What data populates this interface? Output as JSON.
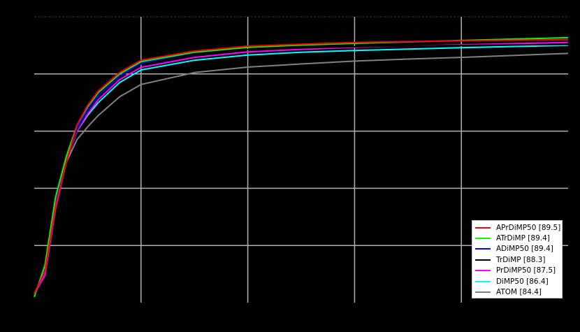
{
  "chart_data": {
    "type": "line",
    "title": "",
    "xlabel": "",
    "ylabel": "",
    "xlim": [
      0,
      50
    ],
    "ylim": [
      0,
      100
    ],
    "x_ticks": [
      0,
      10,
      20,
      30,
      40,
      50
    ],
    "y_ticks": [
      0,
      20,
      40,
      60,
      80,
      100
    ],
    "grid": true,
    "legend_position": "lower right",
    "x": [
      0,
      1,
      2,
      3,
      4,
      5,
      6,
      8,
      10,
      15,
      20,
      25,
      30,
      35,
      40,
      45,
      50
    ],
    "series": [
      {
        "name": "APrDiMP50 [89.5]",
        "color": "#ff0000",
        "values": [
          3,
          11,
          34,
          49,
          62,
          69,
          74,
          80.5,
          84.8,
          88,
          89.7,
          90.4,
          91,
          91.3,
          91.6,
          91.8,
          92
        ]
      },
      {
        "name": "ATrDiMP [89.4]",
        "color": "#00ff00",
        "values": [
          2,
          13,
          37,
          51,
          62,
          68.5,
          73.5,
          80,
          84.3,
          87.6,
          89.3,
          90.1,
          90.7,
          91.2,
          91.7,
          92.2,
          92.7
        ]
      },
      {
        "name": "ADiMP50 [89.4]",
        "color": "#0000ff",
        "values": [
          3,
          11.5,
          35,
          50,
          61,
          67.5,
          72.5,
          79.3,
          83.8,
          87.5,
          89.4,
          90.3,
          91,
          91.4,
          91.6,
          91.8,
          91.9
        ]
      },
      {
        "name": "TrDiMP [88.3]",
        "color": "#000000",
        "values": [
          3,
          11,
          34.5,
          49.5,
          60.5,
          67,
          72,
          79,
          83.5,
          86.8,
          88.5,
          89.1,
          89.5,
          89.8,
          90,
          90.2,
          90.3
        ]
      },
      {
        "name": "PrDiMP50 [87.5]",
        "color": "#ff00ff",
        "values": [
          3,
          9.5,
          33,
          49,
          60,
          66,
          71,
          78,
          82.3,
          85.8,
          87.7,
          88.6,
          89.3,
          89.8,
          90.2,
          90.6,
          91
        ]
      },
      {
        "name": "DiMP50 [86.4]",
        "color": "#00ffff",
        "values": [
          3,
          11,
          35,
          50,
          60,
          65.5,
          70,
          77,
          81.4,
          84.8,
          86.6,
          87.6,
          88.2,
          88.7,
          89.2,
          89.6,
          90
        ]
      },
      {
        "name": "ATOM [84.4]",
        "color": "#808080",
        "values": [
          3,
          11,
          35,
          49,
          57,
          61.5,
          65.5,
          72,
          76.3,
          80.5,
          82.4,
          83.5,
          84.5,
          85.2,
          85.8,
          86.5,
          87.2
        ]
      }
    ]
  },
  "legend": {
    "items": [
      {
        "label": "APrDiMP50 [89.5]",
        "color": "#ff0000"
      },
      {
        "label": "ATrDiMP [89.4]",
        "color": "#00ff00"
      },
      {
        "label": "ADiMP50 [89.4]",
        "color": "#0000ff"
      },
      {
        "label": "TrDiMP [88.3]",
        "color": "#000000"
      },
      {
        "label": "PrDiMP50 [87.5]",
        "color": "#ff00ff"
      },
      {
        "label": "DiMP50 [86.4]",
        "color": "#00ffff"
      },
      {
        "label": "ATOM [84.4]",
        "color": "#808080"
      }
    ]
  }
}
